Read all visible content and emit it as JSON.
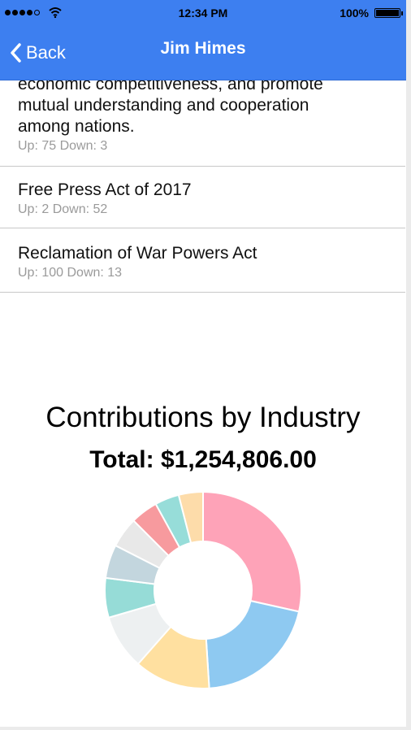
{
  "status_bar": {
    "time": "12:34 PM",
    "battery": "100%"
  },
  "nav": {
    "back_label": "Back",
    "title": "Jim Himes"
  },
  "bills": [
    {
      "title_lines": [
        "economic competitiveness, and promote",
        "mutual understanding and cooperation",
        "among nations."
      ],
      "votes": "Up: 75 Down: 3"
    },
    {
      "title_lines": [
        "Free Press Act of 2017"
      ],
      "votes": "Up: 2 Down: 52"
    },
    {
      "title_lines": [
        "Reclamation of War Powers Act"
      ],
      "votes": "Up: 100 Down: 13"
    }
  ],
  "contributions": {
    "title": "Contributions by Industry",
    "total": "Total: $1,254,806.00"
  },
  "chart_data": {
    "type": "pie",
    "style": "donut",
    "title": "Contributions by Industry",
    "slices": [
      {
        "color": "#fea3b8",
        "value": 28.5
      },
      {
        "color": "#8ec9f1",
        "value": 20.5
      },
      {
        "color": "#ffe0a0",
        "value": 12.5
      },
      {
        "color": "#edf0f1",
        "value": 9.0
      },
      {
        "color": "#96dcd7",
        "value": 6.5
      },
      {
        "color": "#c3d6de",
        "value": 5.5
      },
      {
        "color": "#e8e8e8",
        "value": 5.0
      },
      {
        "color": "#f79a9e",
        "value": 4.5
      },
      {
        "color": "#97ddd9",
        "value": 4.0
      },
      {
        "color": "#fddcaa",
        "value": 4.0
      }
    ]
  }
}
